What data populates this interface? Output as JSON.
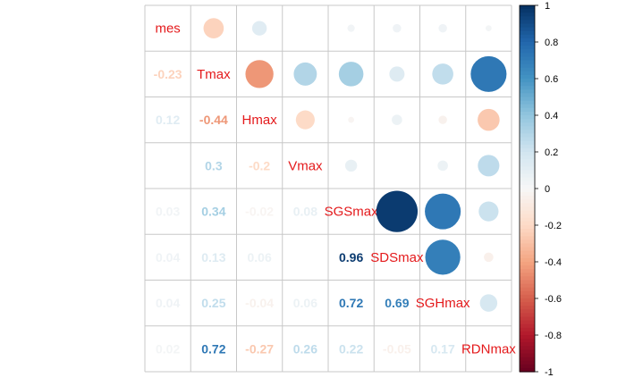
{
  "chart_data": {
    "type": "heatmap",
    "variables": [
      "mes",
      "Tmax",
      "Hmax",
      "Vmax",
      "SGSmax",
      "SDSmax",
      "SGHmax",
      "RDNmax"
    ],
    "matrix": [
      [
        1,
        -0.23,
        0.12,
        0.0,
        0.03,
        0.04,
        0.04,
        0.02
      ],
      [
        -0.23,
        1,
        -0.44,
        0.3,
        0.34,
        0.13,
        0.25,
        0.72
      ],
      [
        0.12,
        -0.44,
        1,
        -0.2,
        -0.02,
        0.06,
        -0.04,
        -0.27
      ],
      [
        0.0,
        0.3,
        -0.2,
        1,
        0.08,
        0.0,
        0.06,
        0.26
      ],
      [
        0.03,
        0.34,
        -0.02,
        0.08,
        1,
        0.96,
        0.72,
        0.22
      ],
      [
        0.04,
        0.13,
        0.06,
        0.0,
        0.96,
        1,
        0.69,
        -0.05
      ],
      [
        0.04,
        0.25,
        -0.04,
        0.06,
        0.72,
        0.69,
        1,
        0.17
      ],
      [
        0.02,
        0.72,
        -0.27,
        0.26,
        0.22,
        -0.05,
        0.17,
        1
      ]
    ],
    "lower_labels": [
      [
        "-0.23"
      ],
      [
        "0.12",
        "-0.44"
      ],
      [
        "",
        "0.3",
        "-0.2"
      ],
      [
        "0.03",
        "0.34",
        "-0.02",
        "0.08"
      ],
      [
        "0.04",
        "0.13",
        "0.06",
        "",
        "0.96"
      ],
      [
        "0.04",
        "0.25",
        "-0.04",
        "0.06",
        "0.72",
        "0.69"
      ],
      [
        "0.02",
        "0.72",
        "-0.27",
        "0.26",
        "0.22",
        "-0.05",
        "0.17"
      ]
    ],
    "upper_style": "circle",
    "lower_style": "number",
    "colorbar": {
      "range": [
        -1,
        1
      ],
      "ticks": [
        "1",
        "0.8",
        "0.6",
        "0.4",
        "0.2",
        "0",
        "-0.2",
        "-0.4",
        "-0.6",
        "-0.8",
        "-1"
      ]
    },
    "colors": {
      "negative_end": "#67001f",
      "neg_mid": "#d6604d",
      "neutral": "#f7f7f7",
      "pos_mid": "#4393c3",
      "positive_end": "#053061",
      "diagonal_label": "#e41a1c",
      "grid": "#c8c8c8"
    }
  }
}
